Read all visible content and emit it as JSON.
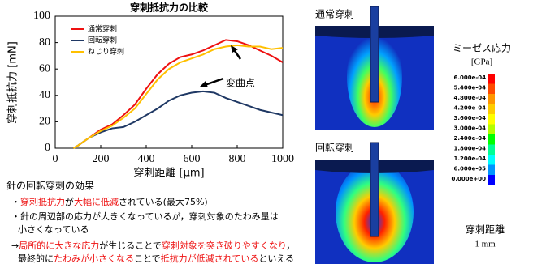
{
  "chart_data": {
    "type": "line",
    "title": "穿刺抵抗力の比較",
    "x_label": "穿刺距離 [μm]",
    "y_label": "穿刺抵抗力 [mN]",
    "x": [
      80,
      100,
      150,
      200,
      250,
      300,
      350,
      400,
      450,
      500,
      550,
      600,
      650,
      700,
      750,
      800,
      850,
      900,
      950,
      1000
    ],
    "series": [
      {
        "name": "通常穿刺",
        "color": "#ee1111",
        "values": [
          0,
          2,
          8,
          14,
          18,
          25,
          33,
          45,
          56,
          64,
          69,
          71,
          74,
          78,
          82,
          81,
          78,
          74,
          70,
          65
        ]
      },
      {
        "name": "回転穿刺",
        "color": "#1f3864",
        "values": [
          0,
          2,
          8,
          12,
          15,
          16,
          20,
          25,
          30,
          36,
          40,
          42,
          43,
          42,
          38,
          35,
          32,
          29,
          27,
          25
        ]
      },
      {
        "name": "ねじり穿刺",
        "color": "#ffc000",
        "values": [
          0,
          2,
          8,
          13,
          17,
          23,
          30,
          41,
          52,
          60,
          65,
          68,
          71,
          75,
          77,
          78,
          77,
          77,
          75,
          76
        ]
      }
    ],
    "xlim": [
      0,
      1000
    ],
    "xticks": [
      0,
      200,
      400,
      600,
      800,
      1000
    ],
    "ylim": [
      0,
      100
    ],
    "yticks": [
      0,
      20,
      40,
      60,
      80,
      100
    ],
    "annotation": "変曲点"
  },
  "notes": {
    "heading": "針の回転穿刺の効果",
    "line1": [
      "・",
      "穿刺抵抗力",
      "が",
      "大幅に低減",
      "されている(最大75%)"
    ],
    "line2": "・針の周辺部の応力が大きくなっているが，穿刺対象のたわみ量は",
    "line3": "小さくなっている",
    "line4": [
      "→",
      "局所的に大きな応力",
      "が生じることで",
      "穿刺対象を突き破りやすくなり",
      "，"
    ],
    "line5": [
      "最終的に",
      "たわみが小さくなる",
      "ことで",
      "抵抗力が低減されている",
      "といえる"
    ]
  },
  "figure": {
    "label_top": "通常穿刺",
    "label_bottom": "回転穿刺",
    "legend_title": "ミーゼス応力",
    "legend_unit": "[GPa]",
    "legend_labels": [
      "6.000e-04",
      "5.400e-04",
      "4.800e-04",
      "4.200e-04",
      "3.600e-04",
      "3.000e-04",
      "2.400e-04",
      "1.800e-04",
      "1.200e-04",
      "6.000e-05",
      "0.000e+00"
    ],
    "legend_colors": [
      "#ff0000",
      "#ff4a00",
      "#ff9600",
      "#ffcc00",
      "#ffff00",
      "#b4ff00",
      "#00ff00",
      "#00ff96",
      "#00ffff",
      "#0096ff",
      "#0000ff"
    ],
    "distance_label": "穿刺距離",
    "distance_value": "1 mm"
  }
}
